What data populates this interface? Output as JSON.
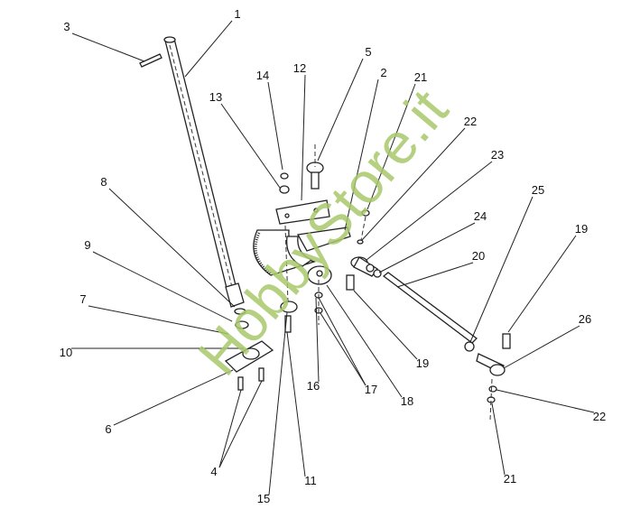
{
  "diagram": {
    "type": "exploded-parts-diagram",
    "callouts": [
      "1",
      "3",
      "14",
      "12",
      "5",
      "2",
      "21",
      "22",
      "23",
      "13",
      "8",
      "9",
      "7",
      "10",
      "6",
      "4",
      "15",
      "11",
      "16",
      "17",
      "18",
      "19",
      "24",
      "20",
      "25",
      "19",
      "26",
      "22",
      "21"
    ],
    "watermark": "HobbyStore.it",
    "watermark_color": "#a8c86a"
  }
}
